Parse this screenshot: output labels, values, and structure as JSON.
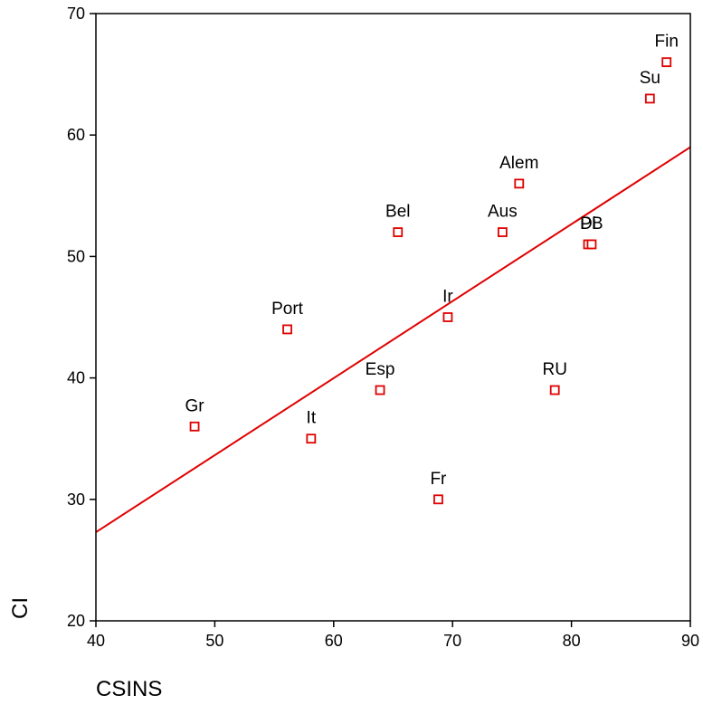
{
  "chart_data": {
    "type": "scatter",
    "xlabel": "CSINS",
    "ylabel": "CI",
    "xlim": [
      40,
      90
    ],
    "ylim": [
      20,
      70
    ],
    "x_ticks": [
      "40",
      "50",
      "60",
      "70",
      "80",
      "90"
    ],
    "y_ticks": [
      "20",
      "30",
      "40",
      "50",
      "60",
      "70"
    ],
    "grid": false,
    "marker_color": "#e00000",
    "line_color": "#e00000",
    "points": [
      {
        "label": "Fin",
        "x": 88.0,
        "y": 66
      },
      {
        "label": "Su",
        "x": 86.6,
        "y": 63
      },
      {
        "label": "Alem",
        "x": 75.6,
        "y": 56
      },
      {
        "label": "Bel",
        "x": 65.4,
        "y": 52
      },
      {
        "label": "Aus",
        "x": 74.2,
        "y": 52
      },
      {
        "label": "Di",
        "x": 81.4,
        "y": 51
      },
      {
        "label": "PB",
        "x": 81.7,
        "y": 51
      },
      {
        "label": "Port",
        "x": 56.1,
        "y": 44
      },
      {
        "label": "Ir",
        "x": 69.6,
        "y": 45
      },
      {
        "label": "Esp",
        "x": 63.9,
        "y": 39
      },
      {
        "label": "RU",
        "x": 78.6,
        "y": 39
      },
      {
        "label": "Gr",
        "x": 48.3,
        "y": 36
      },
      {
        "label": "It",
        "x": 58.1,
        "y": 35
      },
      {
        "label": "Fr",
        "x": 68.8,
        "y": 30
      }
    ],
    "fit_line": {
      "x": [
        40,
        90
      ],
      "y": [
        27.3,
        59.0
      ]
    }
  }
}
